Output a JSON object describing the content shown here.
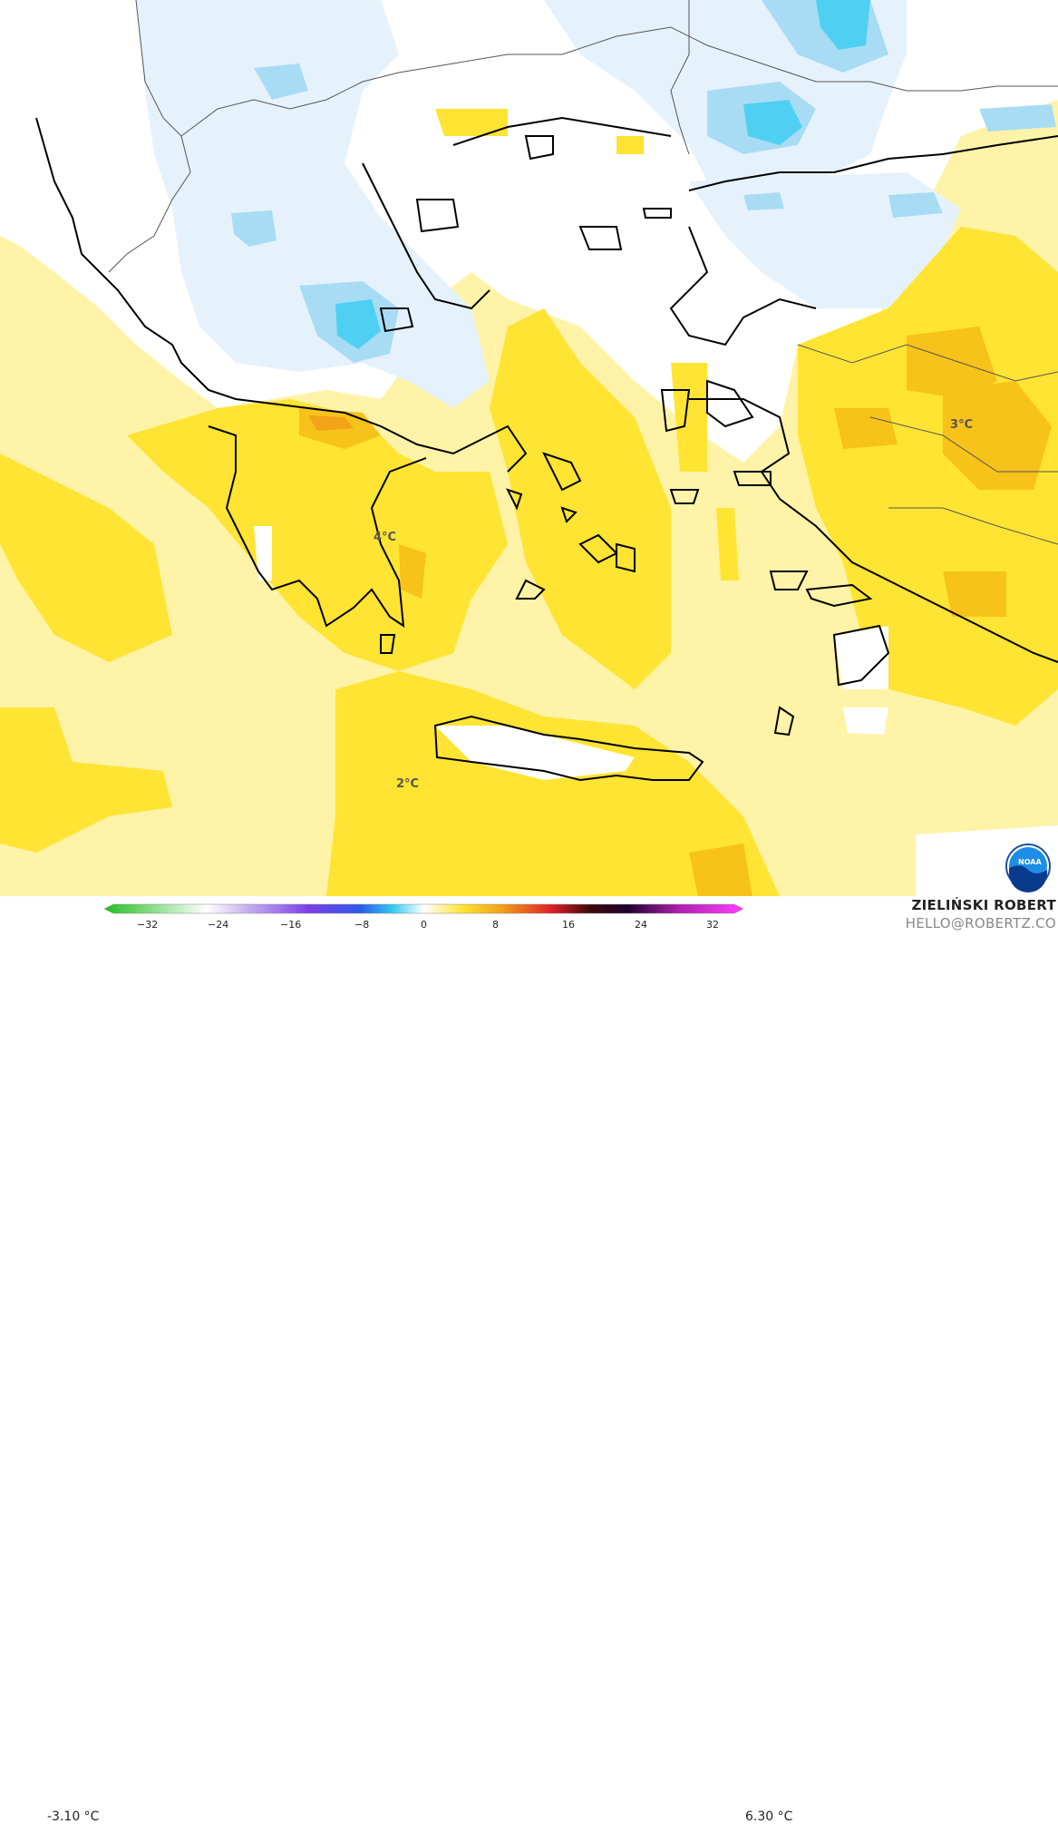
{
  "map": {
    "labels": [
      "3°C",
      "4°C",
      "2°C"
    ]
  },
  "colorbar": {
    "min_label": "-3.10 °C",
    "max_label": "6.30 °C",
    "ticks": [
      "−32",
      "−24",
      "−16",
      "−8",
      "0",
      "8",
      "16",
      "24",
      "32"
    ]
  },
  "credit": {
    "author": "ZIELIŃSKI ROBERT",
    "email": "HELLO@ROBERTZ.CO"
  },
  "colors": {
    "pale_yellow": "#fff3a8",
    "yellow": "#ffe433",
    "orange": "#f7c21a",
    "light_blue": "#e6f2fb",
    "blue": "#a8dcf5",
    "cyan": "#4fd0f2"
  },
  "logo": "noaa-logo"
}
